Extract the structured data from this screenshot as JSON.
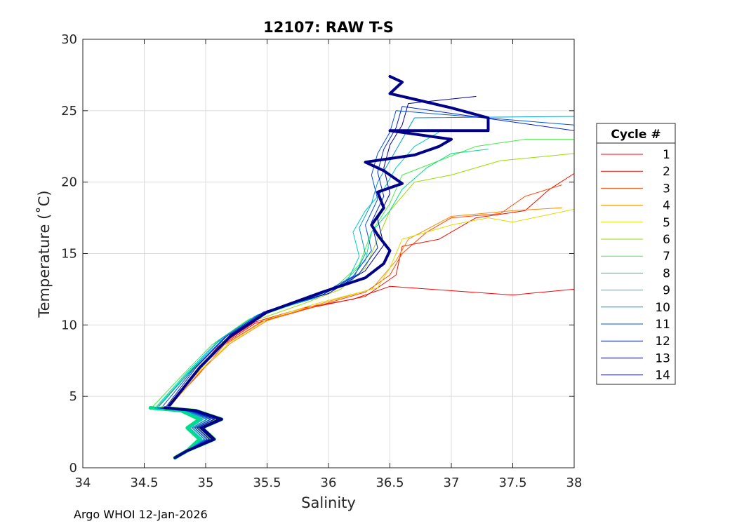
{
  "chart_data": {
    "type": "line",
    "title": "12107: RAW T-S",
    "xlabel": "Salinity",
    "ylabel": "Temperature (˚C)",
    "xlim": [
      34,
      38
    ],
    "ylim": [
      0,
      30
    ],
    "x_ticks": [
      "34",
      "34.5",
      "35",
      "35.5",
      "36",
      "36.5",
      "37",
      "37.5",
      "38"
    ],
    "x_tick_values": [
      34,
      34.5,
      35,
      35.5,
      36,
      36.5,
      37,
      37.5,
      38
    ],
    "y_ticks": [
      "0",
      "5",
      "10",
      "15",
      "20",
      "25",
      "30"
    ],
    "y_tick_values": [
      0,
      5,
      10,
      15,
      20,
      25,
      30
    ],
    "grid": true,
    "legend_title": "Cycle #",
    "legend_position": "right-outside",
    "series": [
      {
        "name": "1",
        "color": "#ff0000",
        "points": [
          [
            34.7,
            4.3
          ],
          [
            34.9,
            6.5
          ],
          [
            35.1,
            8.5
          ],
          [
            35.4,
            10.2
          ],
          [
            35.8,
            11.2
          ],
          [
            36.2,
            11.8
          ],
          [
            36.5,
            12.7
          ],
          [
            37.0,
            12.4
          ],
          [
            37.5,
            12.1
          ],
          [
            38.0,
            12.5
          ]
        ]
      },
      {
        "name": "2",
        "color": "#ee1100",
        "points": [
          [
            34.68,
            4.2
          ],
          [
            34.9,
            6.4
          ],
          [
            35.1,
            8.4
          ],
          [
            35.4,
            10.1
          ],
          [
            35.8,
            11.1
          ],
          [
            36.3,
            12.0
          ],
          [
            36.55,
            13.5
          ],
          [
            36.6,
            15.5
          ],
          [
            36.9,
            16.0
          ],
          [
            37.2,
            17.5
          ],
          [
            37.6,
            18.0
          ],
          [
            37.8,
            19.5
          ],
          [
            38.0,
            20.6
          ]
        ]
      },
      {
        "name": "3",
        "color": "#ff4400",
        "points": [
          [
            34.7,
            4.3
          ],
          [
            34.95,
            6.6
          ],
          [
            35.15,
            8.6
          ],
          [
            35.45,
            10.2
          ],
          [
            35.9,
            11.3
          ],
          [
            36.3,
            12.3
          ],
          [
            36.5,
            13.5
          ],
          [
            36.6,
            15.0
          ],
          [
            36.8,
            16.5
          ],
          [
            37.0,
            17.5
          ],
          [
            37.4,
            17.8
          ],
          [
            37.6,
            19.0
          ],
          [
            37.9,
            19.8
          ]
        ]
      },
      {
        "name": "4",
        "color": "#ff8800",
        "points": [
          [
            34.72,
            4.4
          ],
          [
            34.95,
            6.7
          ],
          [
            35.2,
            8.7
          ],
          [
            35.5,
            10.3
          ],
          [
            35.9,
            11.4
          ],
          [
            36.35,
            12.5
          ],
          [
            36.55,
            14.5
          ],
          [
            36.65,
            16.0
          ],
          [
            37.0,
            17.6
          ],
          [
            37.5,
            18.0
          ],
          [
            37.9,
            18.2
          ]
        ]
      },
      {
        "name": "5",
        "color": "#dddd00",
        "points": [
          [
            34.7,
            4.5
          ],
          [
            34.95,
            6.8
          ],
          [
            35.2,
            8.8
          ],
          [
            35.5,
            10.4
          ],
          [
            35.9,
            11.5
          ],
          [
            36.4,
            12.6
          ],
          [
            36.5,
            14.0
          ],
          [
            36.6,
            16.0
          ],
          [
            37.0,
            17.0
          ],
          [
            37.3,
            17.5
          ],
          [
            37.5,
            17.2
          ],
          [
            38.0,
            18.1
          ]
        ]
      },
      {
        "name": "6",
        "color": "#99dd00",
        "points": [
          [
            34.6,
            4.2
          ],
          [
            34.85,
            6.5
          ],
          [
            35.1,
            8.6
          ],
          [
            35.4,
            10.3
          ],
          [
            35.8,
            11.5
          ],
          [
            36.1,
            12.5
          ],
          [
            36.3,
            14.0
          ],
          [
            36.4,
            16.0
          ],
          [
            36.5,
            18.0
          ],
          [
            36.7,
            20.0
          ],
          [
            37.0,
            20.5
          ],
          [
            37.4,
            21.5
          ],
          [
            38.0,
            22.0
          ]
        ]
      },
      {
        "name": "7",
        "color": "#44ee44",
        "points": [
          [
            34.55,
            4.1
          ],
          [
            34.8,
            6.4
          ],
          [
            35.05,
            8.6
          ],
          [
            35.35,
            10.4
          ],
          [
            35.75,
            11.6
          ],
          [
            36.05,
            12.6
          ],
          [
            36.25,
            14.2
          ],
          [
            36.35,
            16.5
          ],
          [
            36.5,
            18.5
          ],
          [
            36.6,
            20.5
          ],
          [
            36.9,
            21.5
          ],
          [
            37.2,
            22.5
          ],
          [
            37.6,
            23.0
          ],
          [
            38.0,
            23.0
          ]
        ]
      },
      {
        "name": "8",
        "color": "#00dd88",
        "points": [
          [
            34.6,
            4.2
          ],
          [
            34.85,
            6.6
          ],
          [
            35.1,
            8.8
          ],
          [
            35.4,
            10.5
          ],
          [
            35.8,
            11.7
          ],
          [
            36.1,
            12.8
          ],
          [
            36.3,
            14.5
          ],
          [
            36.35,
            16.5
          ],
          [
            36.5,
            18.0
          ],
          [
            36.6,
            19.5
          ],
          [
            36.8,
            21.0
          ],
          [
            37.0,
            22.0
          ],
          [
            37.3,
            22.3
          ]
        ]
      },
      {
        "name": "9",
        "color": "#00cccc",
        "points": [
          [
            34.6,
            4.3
          ],
          [
            34.85,
            6.7
          ],
          [
            35.1,
            8.9
          ],
          [
            35.4,
            10.6
          ],
          [
            35.85,
            11.8
          ],
          [
            36.15,
            13.0
          ],
          [
            36.25,
            14.8
          ],
          [
            36.2,
            16.5
          ],
          [
            36.3,
            18.0
          ],
          [
            36.45,
            19.5
          ],
          [
            36.55,
            21.0
          ],
          [
            36.7,
            22.5
          ],
          [
            36.9,
            23.5
          ]
        ]
      },
      {
        "name": "10",
        "color": "#0099cc",
        "points": [
          [
            34.62,
            4.3
          ],
          [
            34.88,
            6.8
          ],
          [
            35.12,
            9.0
          ],
          [
            35.42,
            10.7
          ],
          [
            35.9,
            11.9
          ],
          [
            36.2,
            13.2
          ],
          [
            36.3,
            15.0
          ],
          [
            36.25,
            16.8
          ],
          [
            36.35,
            18.5
          ],
          [
            36.4,
            20.0
          ],
          [
            36.5,
            21.5
          ],
          [
            36.6,
            23.0
          ],
          [
            36.7,
            24.5
          ],
          [
            38.0,
            24.6
          ]
        ]
      },
      {
        "name": "11",
        "color": "#0055dd",
        "points": [
          [
            34.65,
            4.3
          ],
          [
            34.9,
            6.9
          ],
          [
            35.15,
            9.1
          ],
          [
            35.45,
            10.8
          ],
          [
            35.9,
            12.0
          ],
          [
            36.2,
            13.4
          ],
          [
            36.35,
            15.2
          ],
          [
            36.3,
            17.0
          ],
          [
            36.4,
            18.8
          ],
          [
            36.35,
            20.5
          ],
          [
            36.4,
            22.0
          ],
          [
            36.5,
            23.5
          ],
          [
            36.55,
            25.0
          ],
          [
            38.0,
            24.0
          ]
        ]
      },
      {
        "name": "12",
        "color": "#0022cc",
        "points": [
          [
            34.68,
            4.3
          ],
          [
            34.92,
            7.0
          ],
          [
            35.17,
            9.2
          ],
          [
            35.47,
            10.9
          ],
          [
            35.95,
            12.1
          ],
          [
            36.25,
            13.6
          ],
          [
            36.4,
            15.4
          ],
          [
            36.35,
            17.2
          ],
          [
            36.45,
            19.0
          ],
          [
            36.4,
            20.7
          ],
          [
            36.45,
            22.3
          ],
          [
            36.55,
            23.8
          ],
          [
            36.6,
            25.3
          ],
          [
            38.0,
            23.6
          ]
        ]
      },
      {
        "name": "13",
        "color": "#000099",
        "points": [
          [
            34.7,
            4.4
          ],
          [
            34.95,
            7.1
          ],
          [
            35.2,
            9.3
          ],
          [
            35.5,
            11.0
          ],
          [
            36.0,
            12.2
          ],
          [
            36.3,
            13.8
          ],
          [
            36.45,
            15.6
          ],
          [
            36.4,
            17.4
          ],
          [
            36.5,
            19.2
          ],
          [
            36.45,
            21.0
          ],
          [
            36.5,
            22.6
          ],
          [
            36.6,
            24.0
          ],
          [
            36.65,
            25.5
          ],
          [
            37.2,
            26.0
          ]
        ]
      },
      {
        "name": "14",
        "color": "#000088",
        "points": [
          [
            34.7,
            4.3
          ],
          [
            34.95,
            7.0
          ],
          [
            35.2,
            9.2
          ],
          [
            35.5,
            10.9
          ],
          [
            35.95,
            12.3
          ],
          [
            36.3,
            13.3
          ],
          [
            36.45,
            14.3
          ],
          [
            36.5,
            15.2
          ],
          [
            36.4,
            16.3
          ],
          [
            36.35,
            17.0
          ],
          [
            36.45,
            18.2
          ],
          [
            36.4,
            19.3
          ],
          [
            36.6,
            19.9
          ],
          [
            36.45,
            20.8
          ],
          [
            36.3,
            21.4
          ],
          [
            36.7,
            21.9
          ],
          [
            36.9,
            22.5
          ],
          [
            37.0,
            23.0
          ],
          [
            36.5,
            23.6
          ],
          [
            37.3,
            23.6
          ],
          [
            37.3,
            24.5
          ],
          [
            37.0,
            25.2
          ],
          [
            36.7,
            25.8
          ],
          [
            36.5,
            26.2
          ],
          [
            36.6,
            27.0
          ],
          [
            36.5,
            27.4
          ]
        ]
      }
    ]
  },
  "footer_text": "Argo WHOI 12-Jan-2026"
}
